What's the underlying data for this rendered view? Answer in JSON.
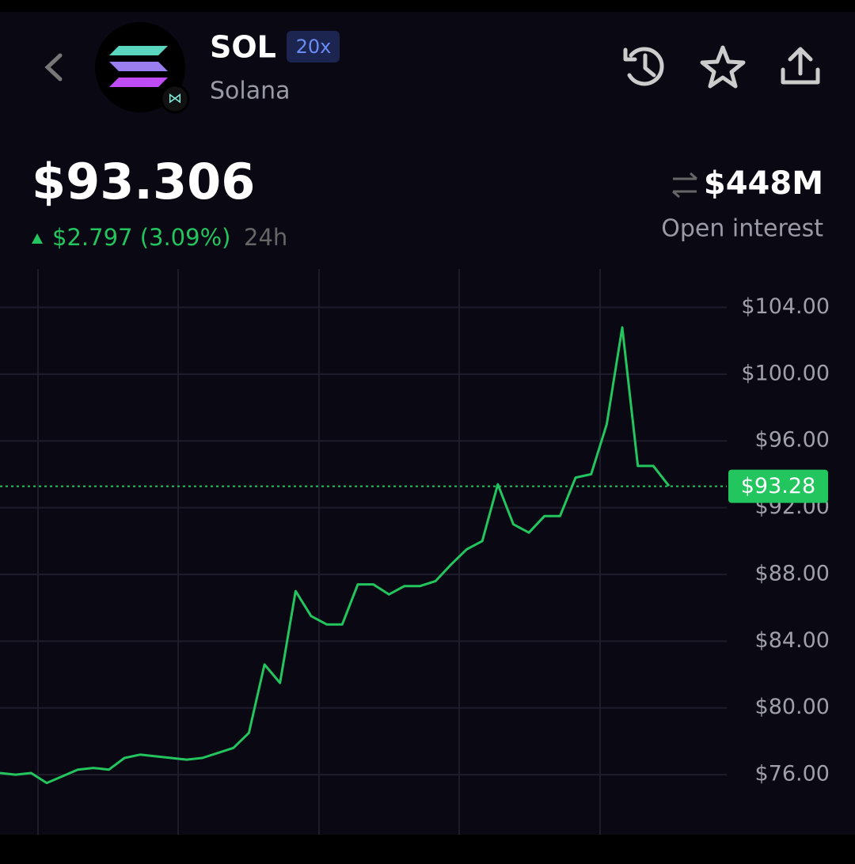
{
  "header": {
    "symbol": "SOL",
    "leverage": "20x",
    "name": "Solana"
  },
  "price": {
    "last": "$93.306",
    "change": "$2.797 (3.09%)",
    "period": "24h",
    "open_interest": "$448M",
    "open_interest_label": "Open interest"
  },
  "chart_data": {
    "type": "line",
    "color": "#22c55e",
    "values": [
      76.1,
      76.0,
      76.1,
      75.5,
      75.9,
      76.3,
      76.4,
      76.3,
      77.0,
      77.2,
      77.1,
      77.0,
      76.9,
      77.0,
      77.3,
      77.6,
      78.5,
      82.6,
      81.5,
      87.0,
      85.5,
      85.0,
      85.0,
      87.4,
      87.4,
      86.8,
      87.3,
      87.3,
      87.6,
      88.6,
      89.5,
      90.0,
      93.4,
      91.0,
      90.5,
      91.5,
      91.5,
      93.8,
      94.0,
      97.0,
      102.8,
      94.5,
      94.5,
      93.3
    ],
    "ylim": [
      72.4,
      106.3
    ],
    "yticks": [
      {
        "value": 76,
        "label": "$76.00"
      },
      {
        "value": 80,
        "label": "$80.00"
      },
      {
        "value": 84,
        "label": "$84.00"
      },
      {
        "value": 88,
        "label": "$88.00"
      },
      {
        "value": 92,
        "label": "$92.00"
      },
      {
        "value": 96,
        "label": "$96.00"
      },
      {
        "value": 100,
        "label": "$100.00"
      },
      {
        "value": 104,
        "label": "$104.00"
      }
    ],
    "grid": true,
    "current_price": {
      "value": 93.28,
      "label": "$93.28"
    }
  }
}
